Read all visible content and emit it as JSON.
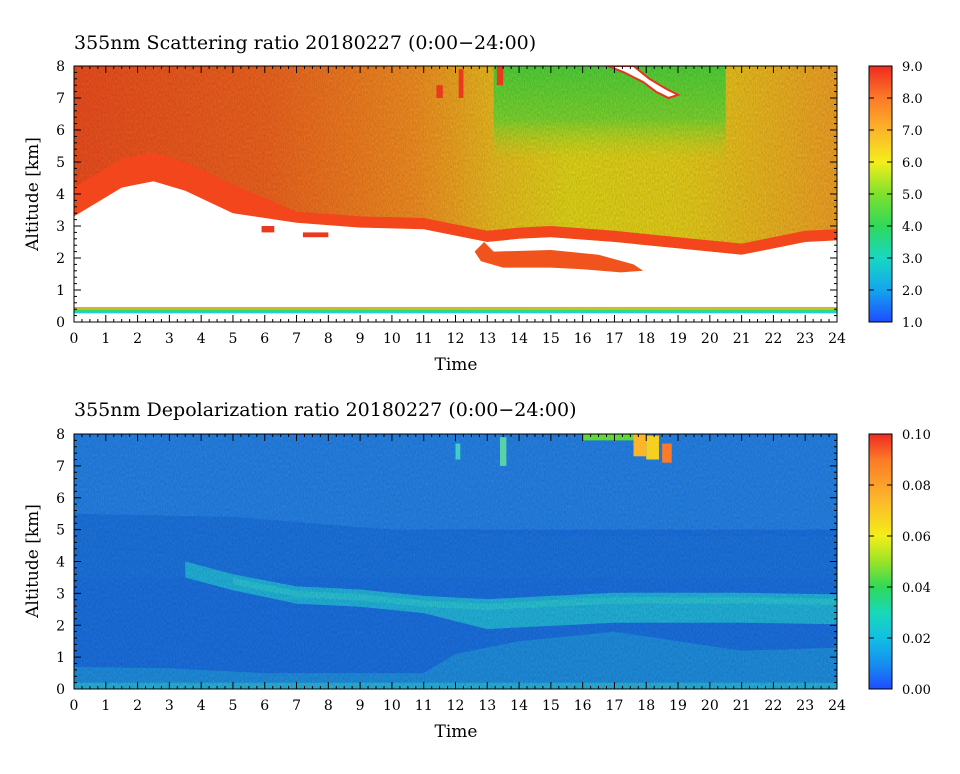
{
  "chart_data": [
    {
      "type": "heatmap",
      "title": "355nm Scattering ratio  20180227 (0:00−24:00)",
      "xlabel": "Time",
      "ylabel": "Altitude [km]",
      "xlim": [
        0,
        24
      ],
      "ylim": [
        0,
        8
      ],
      "x_ticks": [
        "0",
        "1",
        "2",
        "3",
        "4",
        "5",
        "6",
        "7",
        "8",
        "9",
        "10",
        "11",
        "12",
        "13",
        "14",
        "15",
        "16",
        "17",
        "18",
        "19",
        "20",
        "21",
        "22",
        "23",
        "24"
      ],
      "y_ticks": [
        "0",
        "1",
        "2",
        "3",
        "4",
        "5",
        "6",
        "7",
        "8"
      ],
      "colorbar": {
        "range": [
          1.0,
          9.0
        ],
        "ticks": [
          "1.0",
          "2.0",
          "3.0",
          "4.0",
          "5.0",
          "6.0",
          "7.0",
          "8.0",
          "9.0"
        ]
      },
      "description_data": {
        "boundary_layer_top_km": [
          [
            0,
            3.3
          ],
          [
            1.5,
            4.2
          ],
          [
            2.5,
            4.4
          ],
          [
            3.5,
            4.1
          ],
          [
            5,
            3.4
          ],
          [
            7,
            3.1
          ],
          [
            9,
            2.95
          ],
          [
            11,
            2.9
          ],
          [
            13,
            2.5
          ],
          [
            14,
            2.6
          ],
          [
            15,
            2.65
          ],
          [
            17,
            2.5
          ],
          [
            19,
            2.3
          ],
          [
            21,
            2.1
          ],
          [
            23,
            2.5
          ],
          [
            24,
            2.55
          ]
        ],
        "upper_green_region": {
          "x_range": [
            13.2,
            20.5
          ],
          "y_range": [
            5.0,
            8.0
          ],
          "value": 5.0
        },
        "column_mean_values": [
          [
            0,
            8.2
          ],
          [
            3,
            8.0
          ],
          [
            6,
            7.6
          ],
          [
            9,
            7.2
          ],
          [
            12,
            6.8
          ],
          [
            14,
            5.6
          ],
          [
            16,
            5.6
          ],
          [
            18,
            5.4
          ],
          [
            20,
            6.1
          ],
          [
            22,
            6.9
          ],
          [
            24,
            7.2
          ]
        ]
      }
    },
    {
      "type": "heatmap",
      "title": "355nm Depolarization ratio  20180227 (0:00−24:00)",
      "xlabel": "Time",
      "ylabel": "Altitude [km]",
      "xlim": [
        0,
        24
      ],
      "ylim": [
        0,
        8
      ],
      "x_ticks": [
        "0",
        "1",
        "2",
        "3",
        "4",
        "5",
        "6",
        "7",
        "8",
        "9",
        "10",
        "11",
        "12",
        "13",
        "14",
        "15",
        "16",
        "17",
        "18",
        "19",
        "20",
        "21",
        "22",
        "23",
        "24"
      ],
      "y_ticks": [
        "0",
        "1",
        "2",
        "3",
        "4",
        "5",
        "6",
        "7",
        "8"
      ],
      "colorbar": {
        "range": [
          0.0,
          0.1
        ],
        "ticks": [
          "0.00",
          "0.02",
          "0.04",
          "0.06",
          "0.08",
          "0.10"
        ]
      },
      "description_data": {
        "cyan_layer_center_km": [
          [
            3.5,
            3.8
          ],
          [
            5,
            3.4
          ],
          [
            7,
            3.0
          ],
          [
            9,
            2.9
          ],
          [
            11,
            2.7
          ],
          [
            13,
            2.6
          ],
          [
            15,
            2.7
          ],
          [
            17,
            2.8
          ],
          [
            19,
            2.8
          ],
          [
            21,
            2.8
          ],
          [
            24,
            2.75
          ]
        ],
        "background_value": 0.01,
        "layer_value": 0.02,
        "high_cloud": {
          "x_range": [
            16.0,
            19.0
          ],
          "y_range": [
            7.2,
            8.0
          ],
          "value": 0.09
        }
      }
    }
  ]
}
